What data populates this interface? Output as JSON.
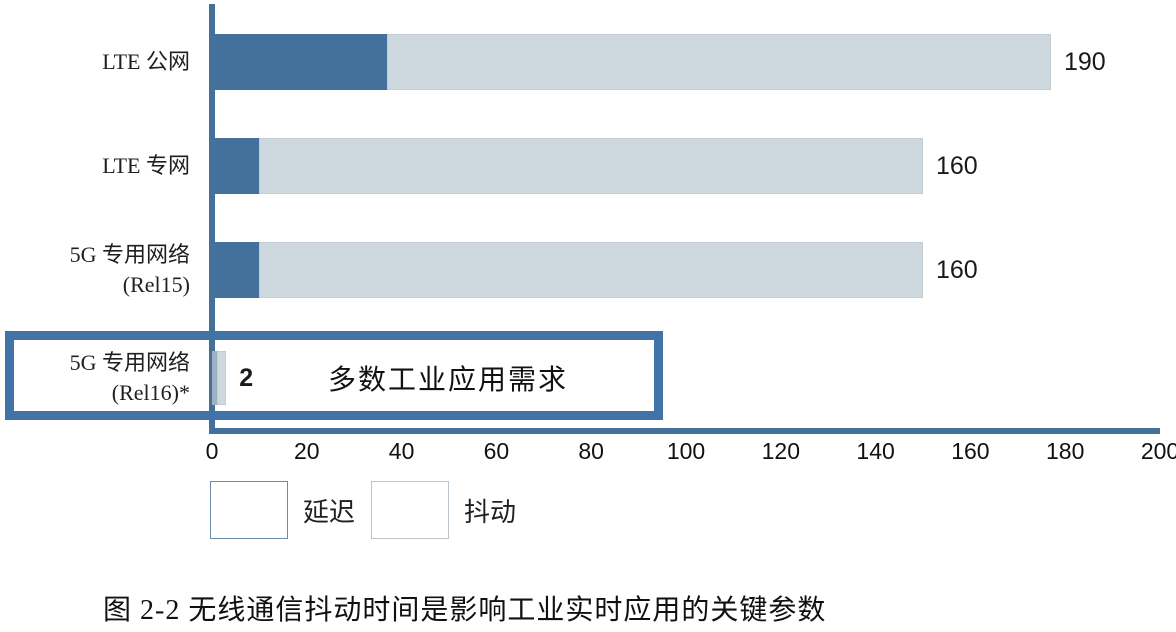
{
  "chart_data": {
    "type": "bar",
    "orientation": "horizontal",
    "categories": [
      [
        "LTE 公网"
      ],
      [
        "LTE 专网"
      ],
      [
        "5G 专用网络",
        "(Rel15)"
      ],
      [
        "5G 专用网络",
        "(Rel16)*"
      ]
    ],
    "series": [
      {
        "name": "延迟",
        "color": "#44719C",
        "values": [
          37,
          10,
          10,
          1
        ]
      },
      {
        "name": "抖动",
        "color": "#CDD8DF",
        "values": [
          140,
          140,
          140,
          2
        ]
      }
    ],
    "bar_labels": [
      "190",
      "160",
      "160",
      "2"
    ],
    "bar_label_bold": [
      false,
      false,
      false,
      true
    ],
    "xlim": [
      0,
      200
    ],
    "x_ticks": [
      0,
      20,
      40,
      60,
      80,
      100,
      120,
      140,
      160,
      180,
      200
    ],
    "legend": [
      "延迟",
      "抖动"
    ],
    "legend_position": "bottom-left",
    "annotation": "多数工业应用需求",
    "caption": "图 2-2 无线通信抖动时间是影响工业实时应用的关键参数",
    "colors": {
      "delay": "#44719C",
      "jitter": "#CDD8DF",
      "muted_delay_rel16": "#9FB0C1",
      "axis": "#44719C",
      "highlight_box_border": "#4273A8"
    },
    "grid": false
  }
}
